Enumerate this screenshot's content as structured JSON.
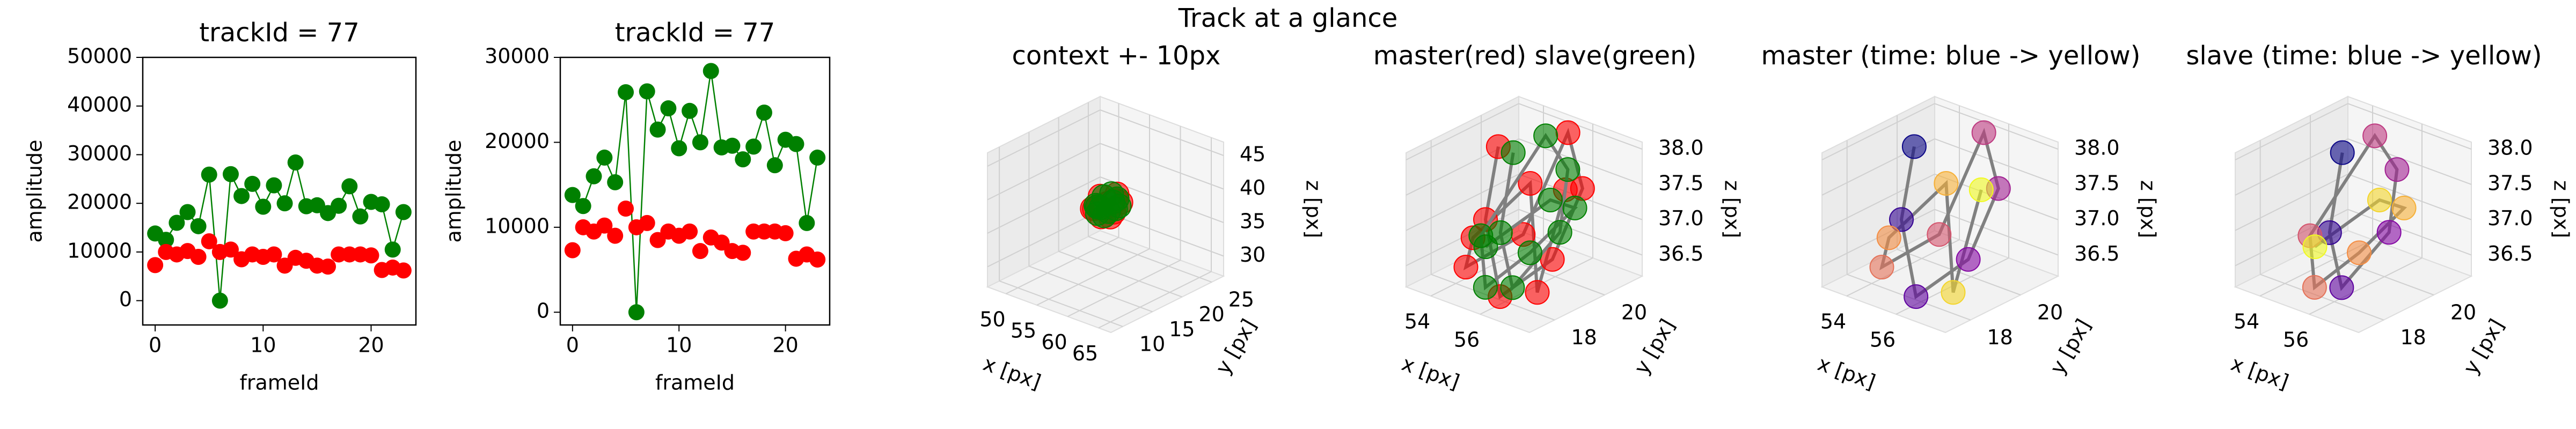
{
  "title": "Track at a glance",
  "chart_data": [
    {
      "type": "scatter",
      "title": "trackId = 77",
      "xlabel": "frameId",
      "ylabel": "amplitude",
      "x": [
        0,
        1,
        2,
        3,
        4,
        5,
        6,
        7,
        8,
        9,
        10,
        11,
        12,
        13,
        14,
        15,
        16,
        17,
        18,
        19,
        20,
        21,
        22,
        23
      ],
      "series": [
        {
          "color": "green",
          "line": true,
          "values": [
            13800,
            12500,
            16000,
            18200,
            15300,
            25900,
            0,
            26000,
            21500,
            24000,
            19300,
            23700,
            20000,
            28400,
            19400,
            19600,
            18000,
            19500,
            23500,
            17300,
            20300,
            19800,
            10500,
            18200
          ]
        },
        {
          "color": "red",
          "line": false,
          "values": [
            7300,
            10000,
            9500,
            10200,
            9000,
            12200,
            10000,
            10500,
            8500,
            9500,
            9000,
            9500,
            7200,
            8800,
            8200,
            7200,
            7000,
            9500,
            9500,
            9500,
            9300,
            6300,
            6800,
            6200
          ]
        }
      ],
      "xlim": [
        -1.15,
        24.15
      ],
      "xticks": [
        0,
        10,
        20
      ],
      "ylim": [
        -5000,
        50000
      ],
      "yticks": [
        0,
        10000,
        20000,
        30000,
        40000,
        50000
      ]
    },
    {
      "type": "scatter",
      "title": "trackId = 77",
      "xlabel": "frameId",
      "ylabel": "amplitude",
      "x": [
        0,
        1,
        2,
        3,
        4,
        5,
        6,
        7,
        8,
        9,
        10,
        11,
        12,
        13,
        14,
        15,
        16,
        17,
        18,
        19,
        20,
        21,
        22,
        23
      ],
      "series": [
        {
          "color": "green",
          "line": true,
          "values": [
            13800,
            12500,
            16000,
            18200,
            15300,
            25900,
            0,
            26000,
            21500,
            24000,
            19300,
            23700,
            20000,
            28400,
            19400,
            19600,
            18000,
            19500,
            23500,
            17300,
            20300,
            19800,
            10500,
            18200
          ]
        },
        {
          "color": "red",
          "line": false,
          "values": [
            7300,
            10000,
            9500,
            10200,
            9000,
            12200,
            10000,
            10500,
            8500,
            9500,
            9000,
            9500,
            7200,
            8800,
            8200,
            7200,
            7000,
            9500,
            9500,
            9500,
            9300,
            6300,
            6800,
            6200
          ]
        }
      ],
      "xlim": [
        -1.15,
        24.15
      ],
      "xticks": [
        0,
        10,
        20
      ],
      "ylim": [
        -1500,
        30000
      ],
      "yticks": [
        0,
        10000,
        20000,
        30000
      ]
    },
    {
      "type": "scatter3d",
      "title": "context +- 10px",
      "xlabel": "x [px]",
      "ylabel": "y [px]",
      "zlabel": "z [px]",
      "series": [
        {
          "color": "red",
          "x": [
            54.2,
            55.0,
            56.3,
            57.1,
            56.8,
            55.5,
            54.6,
            53.8,
            54.9,
            56.0,
            57.3,
            55.8
          ],
          "y": [
            19.5,
            18.2,
            17.5,
            18.8,
            20.3,
            21.0,
            20.1,
            18.6,
            17.8,
            19.0,
            18.0,
            20.6
          ],
          "z": [
            37.9,
            37.2,
            36.4,
            36.8,
            37.5,
            38.0,
            36.6,
            36.3,
            37.0,
            37.7,
            36.5,
            37.3
          ]
        },
        {
          "color": "green",
          "x": [
            54.5,
            55.3,
            56.5,
            57.0,
            55.9,
            54.8,
            54.0,
            55.2,
            56.6,
            57.2,
            55.6,
            54.3
          ],
          "y": [
            19.8,
            18.5,
            17.8,
            19.2,
            20.6,
            20.8,
            19.0,
            18.0,
            18.4,
            19.6,
            20.2,
            18.9
          ],
          "z": [
            37.8,
            37.0,
            36.5,
            37.1,
            37.6,
            37.9,
            36.7,
            36.3,
            36.9,
            37.4,
            37.2,
            36.6
          ]
        }
      ],
      "xlim": [
        47,
        67
      ],
      "xticks": [
        50,
        55,
        60,
        65
      ],
      "ylim": [
        8,
        27
      ],
      "yticks": [
        10,
        15,
        20,
        25
      ],
      "zlim": [
        27,
        47
      ],
      "zticks": [
        30,
        35,
        40,
        45
      ]
    },
    {
      "type": "scatter3d",
      "title": "master(red) slave(green)",
      "xlabel": "x [px]",
      "ylabel": "y [px]",
      "zlabel": "z [px]",
      "series": [
        {
          "color": "red",
          "x": [
            54.2,
            55.0,
            56.3,
            57.1,
            56.8,
            55.5,
            54.6,
            53.8,
            54.9,
            56.0,
            57.3,
            55.8
          ],
          "y": [
            19.5,
            18.2,
            17.5,
            18.8,
            20.3,
            21.0,
            20.1,
            18.6,
            17.8,
            19.0,
            18.0,
            20.6
          ],
          "z": [
            37.9,
            37.2,
            36.4,
            36.8,
            37.5,
            38.0,
            36.6,
            36.3,
            37.0,
            37.7,
            36.5,
            37.3
          ]
        },
        {
          "color": "green",
          "x": [
            54.5,
            55.3,
            56.5,
            57.0,
            55.9,
            54.8,
            54.0,
            55.2,
            56.6,
            57.2,
            55.6,
            54.3
          ],
          "y": [
            19.8,
            18.5,
            17.8,
            19.2,
            20.6,
            20.8,
            19.0,
            18.0,
            18.4,
            19.6,
            20.2,
            18.9
          ],
          "z": [
            37.8,
            37.0,
            36.5,
            37.1,
            37.6,
            37.9,
            36.7,
            36.3,
            36.9,
            37.4,
            37.2,
            36.6
          ]
        }
      ],
      "xlim": [
        53,
        58
      ],
      "xticks": [
        54,
        56
      ],
      "ylim": [
        17,
        21.5
      ],
      "yticks": [
        18,
        20
      ],
      "zlim": [
        36.2,
        38.1
      ],
      "zticks": [
        36.5,
        {
          "value": 37,
          "label": "37.0"
        },
        37.5,
        {
          "value": 38,
          "label": "38.0"
        }
      ]
    },
    {
      "type": "scatter3d",
      "title": "master (time: blue -> yellow)",
      "xlabel": "x [px]",
      "ylabel": "y [px]",
      "zlabel": "z [px]",
      "colormap": "plasma",
      "series": [
        {
          "x": [
            54.2,
            55.0,
            56.3,
            57.1,
            56.8,
            55.5,
            54.6,
            53.8,
            54.9,
            56.0,
            57.3,
            55.8
          ],
          "y": [
            19.5,
            18.2,
            17.5,
            18.8,
            20.3,
            21.0,
            20.1,
            18.6,
            17.8,
            19.0,
            18.0,
            20.6
          ],
          "z": [
            37.9,
            37.2,
            36.4,
            36.8,
            37.5,
            38.0,
            36.6,
            36.3,
            37.0,
            37.7,
            36.5,
            37.3
          ]
        }
      ],
      "xlim": [
        53,
        58
      ],
      "xticks": [
        54,
        56
      ],
      "ylim": [
        17,
        21.5
      ],
      "yticks": [
        18,
        20
      ],
      "zlim": [
        36.2,
        38.1
      ],
      "zticks": [
        36.5,
        {
          "value": 37,
          "label": "37.0"
        },
        37.5,
        {
          "value": 38,
          "label": "38.0"
        }
      ]
    },
    {
      "type": "scatter3d",
      "title": "slave (time: blue -> yellow)",
      "xlabel": "x [px]",
      "ylabel": "y [px]",
      "zlabel": "z [px]",
      "colormap": "plasma",
      "series": [
        {
          "x": [
            54.5,
            55.3,
            56.5,
            57.0,
            55.9,
            54.8,
            54.0,
            55.2,
            56.6,
            57.2,
            55.6,
            54.3
          ],
          "y": [
            19.8,
            18.5,
            17.8,
            19.2,
            20.6,
            20.8,
            19.0,
            18.0,
            18.4,
            19.6,
            20.2,
            18.9
          ],
          "z": [
            37.8,
            37.0,
            36.5,
            37.1,
            37.6,
            37.9,
            36.7,
            36.3,
            36.9,
            37.4,
            37.2,
            36.6
          ]
        }
      ],
      "xlim": [
        53,
        58
      ],
      "xticks": [
        54,
        56
      ],
      "ylim": [
        17,
        21.5
      ],
      "yticks": [
        18,
        20
      ],
      "zlim": [
        36.2,
        38.1
      ],
      "zticks": [
        36.5,
        {
          "value": 37,
          "label": "37.0"
        },
        37.5,
        {
          "value": 38,
          "label": "38.0"
        }
      ]
    }
  ]
}
